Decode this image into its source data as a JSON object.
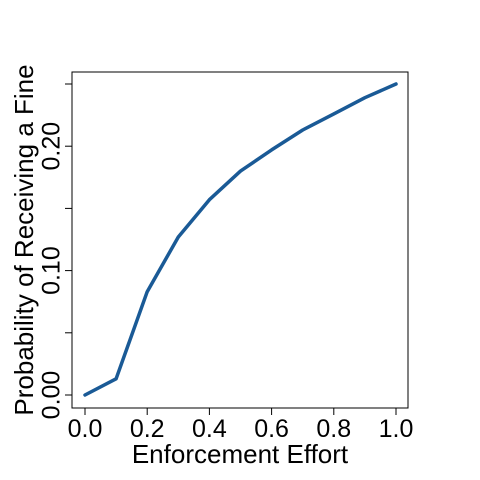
{
  "chart_data": {
    "type": "line",
    "title": "",
    "xlabel": "Enforcement Effort",
    "ylabel": "Probability of Receiving a Fine",
    "xlim": [
      0.0,
      1.0
    ],
    "ylim": [
      0.0,
      0.25
    ],
    "x_ticks": [
      0.0,
      0.2,
      0.4,
      0.6,
      0.8,
      1.0
    ],
    "x_tick_labels": [
      "0.0",
      "0.2",
      "0.4",
      "0.6",
      "0.8",
      "1.0"
    ],
    "y_ticks": [
      0.0,
      0.05,
      0.1,
      0.15,
      0.2,
      0.25
    ],
    "y_tick_labels": [
      "0.00",
      "",
      "0.10",
      "",
      "0.20",
      ""
    ],
    "grid": false,
    "line_color": "#1a5a96",
    "series": [
      {
        "x": [
          0.0,
          0.1,
          0.2,
          0.3,
          0.4,
          0.5,
          0.6,
          0.7,
          0.8,
          0.9,
          1.0
        ],
        "values": [
          0.0,
          0.013,
          0.083,
          0.127,
          0.157,
          0.18,
          0.197,
          0.213,
          0.226,
          0.239,
          0.25
        ]
      }
    ]
  }
}
